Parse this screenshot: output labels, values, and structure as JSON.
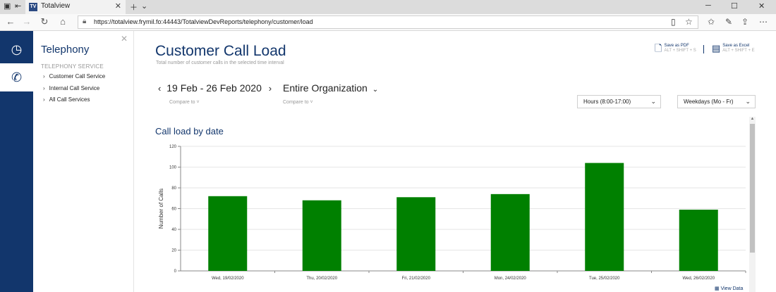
{
  "browser": {
    "tab_title": "Totalview",
    "favicon_text": "TV",
    "url": "https://totalview.frymil.fo:44443/TotalviewDevReports/telephony/customer/load"
  },
  "rail": {
    "items": [
      {
        "icon": "clock-icon",
        "glyph": "◷",
        "active": false
      },
      {
        "icon": "phone-icon",
        "glyph": "✆",
        "active": true
      }
    ]
  },
  "sidebar": {
    "title": "Telephony",
    "section": "TELEPHONY SERVICE",
    "items": [
      {
        "label": "Customer Call Service"
      },
      {
        "label": "Internal Call Service"
      },
      {
        "label": "All Call Services"
      }
    ]
  },
  "page": {
    "title": "Customer Call Load",
    "subtitle": "Total number of customer calls in the selected time interval"
  },
  "export": {
    "pdf_label": "Save as PDF",
    "pdf_shortcut": "ALT + SHIFT + S",
    "excel_label": "Save as Excel",
    "excel_shortcut": "ALT + SHIFT + E"
  },
  "filters": {
    "date_range": "19 Feb - 26 Feb 2020",
    "prev_arrow": "‹",
    "next_arrow": "›",
    "organization": "Entire Organization",
    "compare_label": "Compare to",
    "hours": "Hours (8:00-17:00)",
    "days": "Weekdays (Mo - Fr)"
  },
  "view_data_label": "View Data",
  "colors": {
    "brand": "#12366c",
    "bar": "#008000"
  },
  "chart_data": {
    "type": "bar",
    "title": "Call load by date",
    "ylabel": "Number of Calls",
    "xlabel": "",
    "ylim": [
      0,
      120
    ],
    "yticks": [
      0,
      20,
      40,
      60,
      80,
      100,
      120
    ],
    "categories": [
      "Wed, 19/02/2020",
      "Thu, 20/02/2020",
      "Fri, 21/02/2020",
      "Mon, 24/02/2020",
      "Tue, 25/02/2020",
      "Wed, 26/02/2020"
    ],
    "values": [
      72,
      68,
      71,
      74,
      104,
      59
    ],
    "grid": true
  }
}
